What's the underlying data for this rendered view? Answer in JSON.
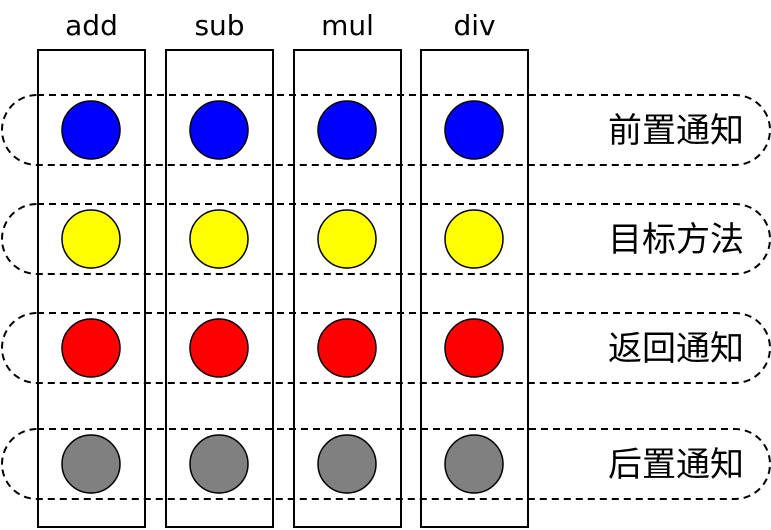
{
  "columns": [
    {
      "label": "add"
    },
    {
      "label": "sub"
    },
    {
      "label": "mul"
    },
    {
      "label": "div"
    }
  ],
  "rows": [
    {
      "label": "前置通知",
      "color": "#0000ff"
    },
    {
      "label": "目标方法",
      "color": "#ffff00"
    },
    {
      "label": "返回通知",
      "color": "#ff0000"
    },
    {
      "label": "后置通知",
      "color": "#808080"
    }
  ]
}
